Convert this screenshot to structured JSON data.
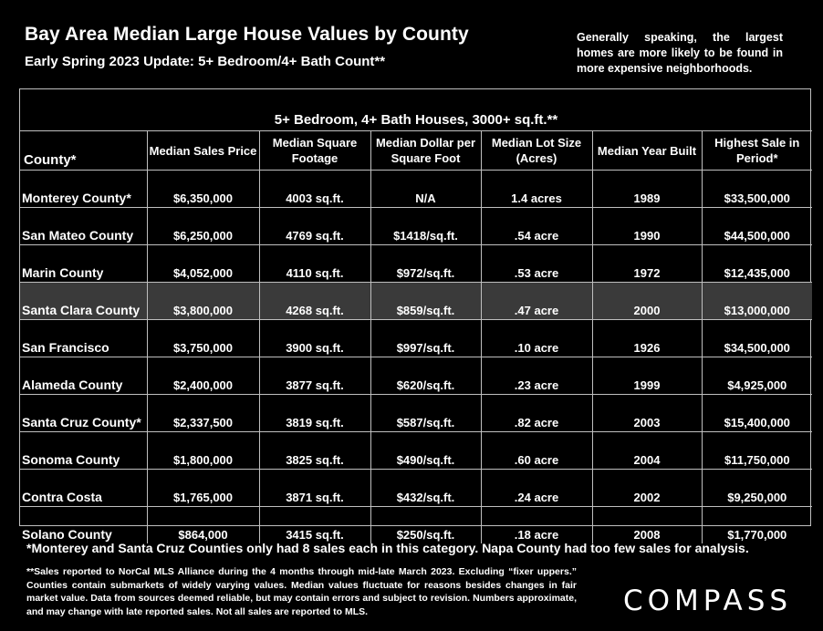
{
  "header": {
    "title": "Bay Area Median Large House Values by County",
    "subtitle": "Early Spring 2023 Update: 5+ Bedroom/4+ Bath Count**",
    "side_note": "Generally speaking, the largest homes are more likely to be found in more expensive neighborhoods."
  },
  "table": {
    "banner": "5+ Bedroom, 4+ Bath Houses, 3000+ sq.ft.**",
    "columns": [
      "County*",
      "Median Sales Price",
      "Median Square Footage",
      "Median Dollar per Square Foot",
      "Median Lot Size (Acres)",
      "Median Year Built",
      "Highest Sale in Period*"
    ],
    "rows": [
      [
        "Monterey County*",
        "$6,350,000",
        "4003 sq.ft.",
        "N/A",
        "1.4 acres",
        "1989",
        "$33,500,000"
      ],
      [
        "San Mateo County",
        "$6,250,000",
        "4769 sq.ft.",
        "$1418/sq.ft.",
        ".54 acre",
        "1990",
        "$44,500,000"
      ],
      [
        "Marin County",
        "$4,052,000",
        "4110 sq.ft.",
        "$972/sq.ft.",
        ".53 acre",
        "1972",
        "$12,435,000"
      ],
      [
        "Santa Clara County",
        "$3,800,000",
        "4268 sq.ft.",
        "$859/sq.ft.",
        ".47 acre",
        "2000",
        "$13,000,000"
      ],
      [
        "San Francisco",
        "$3,750,000",
        "3900 sq.ft.",
        "$997/sq.ft.",
        ".10 acre",
        "1926",
        "$34,500,000"
      ],
      [
        "Alameda County",
        "$2,400,000",
        "3877 sq.ft.",
        "$620/sq.ft.",
        ".23 acre",
        "1999",
        "$4,925,000"
      ],
      [
        "Santa Cruz County*",
        "$2,337,500",
        "3819 sq.ft.",
        "$587/sq.ft.",
        ".82 acre",
        "2003",
        "$15,400,000"
      ],
      [
        "Sonoma County",
        "$1,800,000",
        "3825 sq.ft.",
        "$490/sq.ft.",
        ".60 acre",
        "2004",
        "$11,750,000"
      ],
      [
        "Contra Costa",
        "$1,765,000",
        "3871 sq.ft.",
        "$432/sq.ft.",
        ".24 acre",
        "2002",
        "$9,250,000"
      ],
      [
        "Solano County",
        "$864,000",
        "3415 sq.ft.",
        "$250/sq.ft.",
        ".18 acre",
        "2008",
        "$1,770,000"
      ]
    ],
    "highlight_row": "Santa Clara County"
  },
  "footnotes": {
    "note1": "*Monterey and Santa Cruz Counties only had 8 sales each in this category. Napa County had too few sales for analysis.",
    "note2": "**Sales reported to NorCal MLS Alliance during the 4 months through mid-late March 2023. Excluding “fixer uppers.” Counties contain submarkets of widely varying values. Median values fluctuate for reasons besides changes in fair market value. Data from sources deemed reliable, but may contain errors and subject to revision.  Numbers approximate, and may change with late reported sales. Not all sales are reported to MLS."
  },
  "brand": {
    "logo_text": "COMPASS"
  },
  "colors": {
    "background": "#000000",
    "text": "#ffffff",
    "grid": "#bfbfbf",
    "highlight_row": "#3a3a3a"
  }
}
